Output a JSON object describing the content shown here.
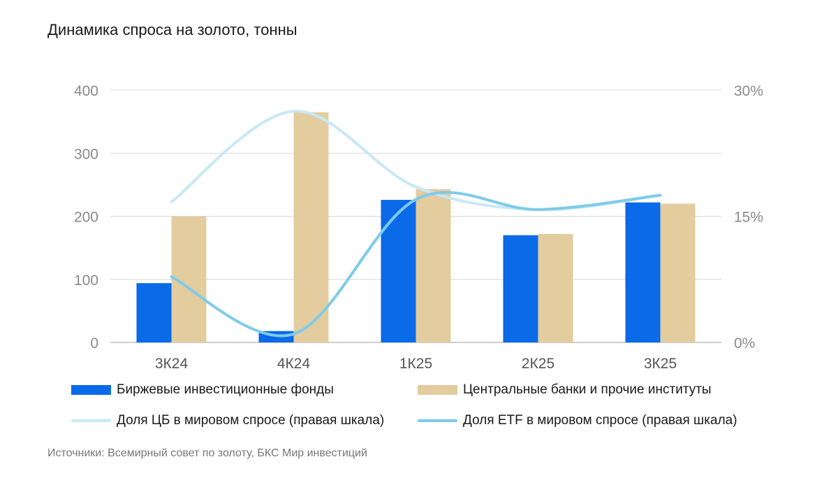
{
  "title": "Динамика спроса на золото, тонны",
  "source": "Источники: Всемирный совет по золоту, БКС Мир инвестиций",
  "colors": {
    "etf_bar": "#0a6ae8",
    "cb_bar": "#e3cc9e",
    "cb_share_line": "#c8e8f6",
    "etf_share_line": "#7ecbea",
    "grid": "#d9d9d9"
  },
  "chart_data": {
    "type": "bar",
    "categories": [
      "3К24",
      "4К24",
      "1К25",
      "2К25",
      "3К25"
    ],
    "left_axis": {
      "ticks": [
        "0",
        "100",
        "200",
        "300",
        "400"
      ],
      "ylim": [
        0,
        400
      ]
    },
    "right_axis": {
      "ticks": [
        "0%",
        "15%",
        "30%"
      ],
      "ylim": [
        0,
        30
      ]
    },
    "series": [
      {
        "name": "Биржевые инвестиционные фонды",
        "type": "bar",
        "axis": "left",
        "values": [
          94,
          18,
          226,
          170,
          222
        ]
      },
      {
        "name": "Центральные банки и прочие институты",
        "type": "bar",
        "axis": "left",
        "values": [
          200,
          365,
          243,
          172,
          220
        ]
      },
      {
        "name": "Доля ЦБ в мировом спросе (правая шкала)",
        "type": "line",
        "axis": "right",
        "values": [
          16.7,
          27.5,
          18.5,
          15.8,
          17.5
        ]
      },
      {
        "name": "Доля ETF в мировом спросе (правая шкала)",
        "type": "line",
        "axis": "right",
        "values": [
          7.8,
          1.0,
          17.0,
          15.8,
          17.5
        ]
      }
    ],
    "grid": true,
    "legend": "bottom"
  }
}
